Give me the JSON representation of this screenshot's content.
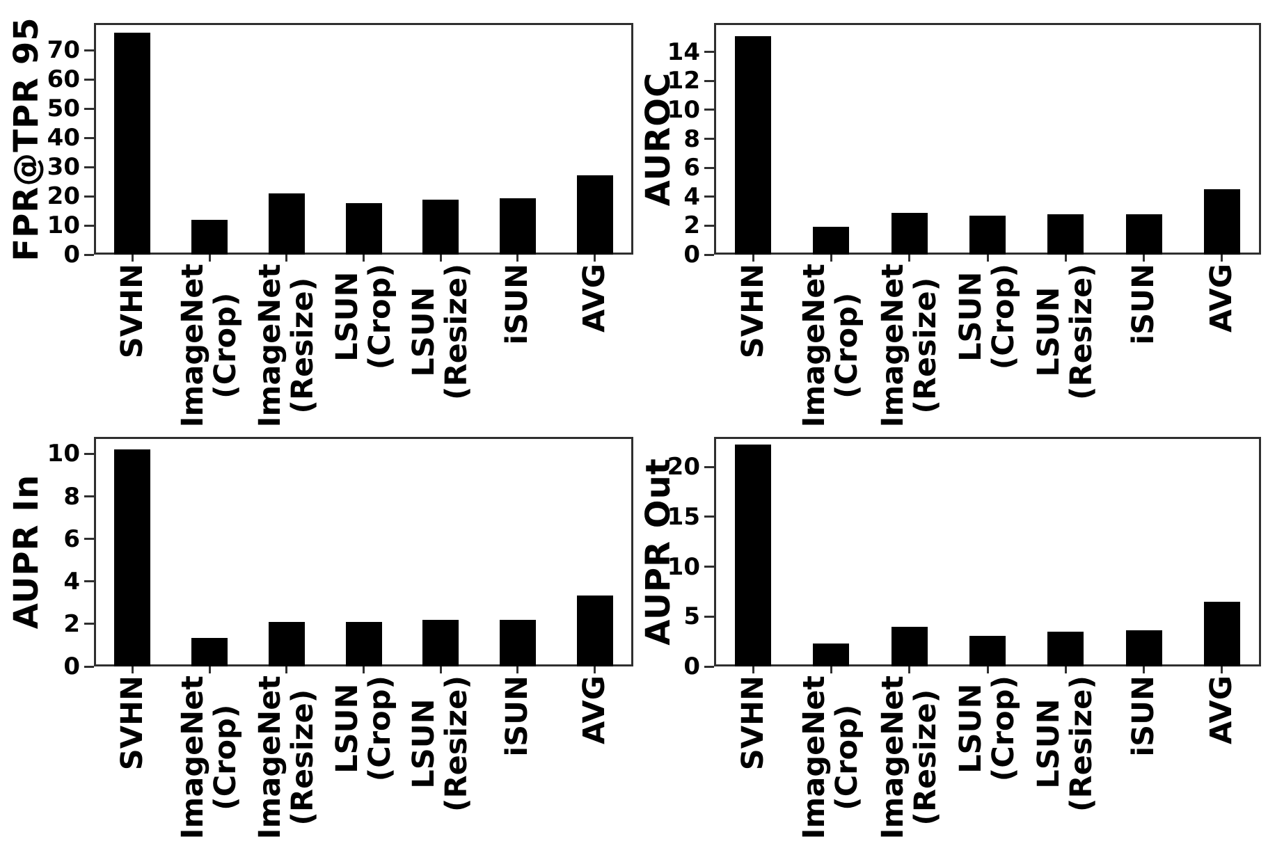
{
  "figure": {
    "background": "#ffffff",
    "bar_color": "#000000",
    "axis_color": "#2f2f2f",
    "text_color": "#000000",
    "layout": "2x2-grid",
    "grid_lines": false,
    "legend": null
  },
  "chart_data": [
    {
      "type": "bar",
      "title": "",
      "ylabel": "FPR@TPR 95",
      "xlabel": "",
      "categories": [
        "SVHN",
        "ImageNet\n(Crop)",
        "ImageNet\n(Resize)",
        "LSUN\n(Crop)",
        "LSUN\n(Resize)",
        "iSUN",
        "AVG"
      ],
      "values": [
        76,
        12,
        21,
        17.6,
        18.8,
        19.2,
        27.2
      ],
      "ylim": [
        0,
        79.3
      ],
      "yticks": [
        0,
        10,
        20,
        30,
        40,
        50,
        60,
        70
      ],
      "grid": false
    },
    {
      "type": "bar",
      "title": "",
      "ylabel": "AUROC",
      "xlabel": "",
      "categories": [
        "SVHN",
        "ImageNet\n(Crop)",
        "ImageNet\n(Resize)",
        "LSUN\n(Crop)",
        "LSUN\n(Resize)",
        "iSUN",
        "AVG"
      ],
      "values": [
        15.1,
        1.9,
        2.9,
        2.7,
        2.8,
        2.8,
        4.5
      ],
      "ylim": [
        0,
        16
      ],
      "yticks": [
        0,
        2,
        4,
        6,
        8,
        10,
        12,
        14
      ],
      "grid": false
    },
    {
      "type": "bar",
      "title": "",
      "ylabel": "AUPR In",
      "xlabel": "",
      "categories": [
        "SVHN",
        "ImageNet\n(Crop)",
        "ImageNet\n(Resize)",
        "LSUN\n(Crop)",
        "LSUN\n(Resize)",
        "iSUN",
        "AVG"
      ],
      "values": [
        10.2,
        1.35,
        2.1,
        2.1,
        2.2,
        2.2,
        3.35
      ],
      "ylim": [
        0,
        10.8
      ],
      "yticks": [
        0,
        2,
        4,
        6,
        8,
        10
      ],
      "grid": false
    },
    {
      "type": "bar",
      "title": "",
      "ylabel": "AUPR Out",
      "xlabel": "",
      "categories": [
        "SVHN",
        "ImageNet\n(Crop)",
        "ImageNet\n(Resize)",
        "LSUN\n(Crop)",
        "LSUN\n(Resize)",
        "iSUN",
        "AVG"
      ],
      "values": [
        22.2,
        2.3,
        4.0,
        3.1,
        3.5,
        3.65,
        6.5
      ],
      "ylim": [
        0,
        23
      ],
      "yticks": [
        0,
        5,
        10,
        15,
        20
      ],
      "grid": false
    }
  ]
}
